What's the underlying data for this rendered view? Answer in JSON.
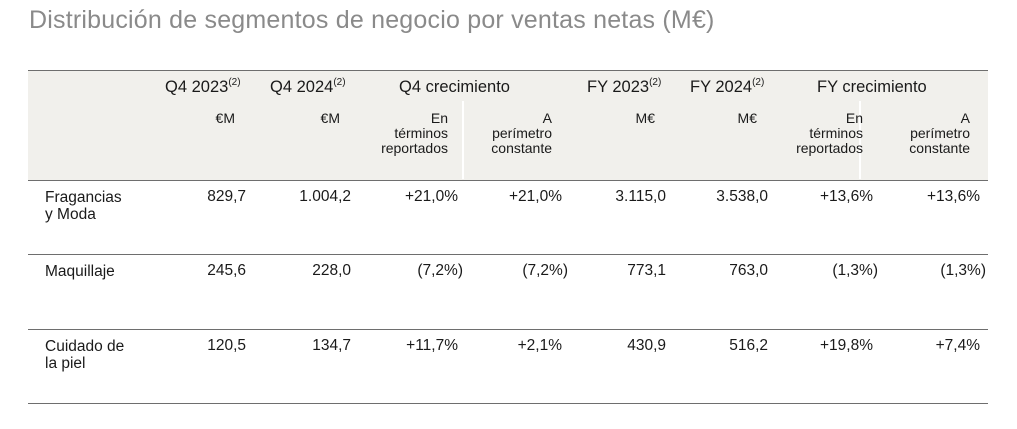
{
  "title": "Distribución de segmentos de negocio por ventas netas (M€)",
  "header": {
    "q4_2023": {
      "label": "Q4 2023",
      "sup": "(2)"
    },
    "q4_2024": {
      "label": "Q4 2024",
      "sup": "(2)"
    },
    "q4_growth": "Q4 crecimiento",
    "fy_2023": {
      "label": "FY 2023",
      "sup": "(2)"
    },
    "fy_2024": {
      "label": "FY 2024",
      "sup": "(2)"
    },
    "fy_growth": "FY crecimiento"
  },
  "units": {
    "q4_2023": "€M",
    "q4_2024": "€M",
    "fy_2023": "M€",
    "fy_2024": "M€"
  },
  "subheaders": {
    "reported": [
      "En",
      "términos",
      "reportados"
    ],
    "constant": [
      "A",
      "perímetro",
      "constante"
    ]
  },
  "rows": [
    {
      "label": [
        "Fragancias",
        "y Moda"
      ],
      "q4_2023": "829,7",
      "q4_2024": "1.004,2",
      "q4_rep": "+21,0%",
      "q4_const": "+21,0%",
      "fy_2023": "3.115,0",
      "fy_2024": "3.538,0",
      "fy_rep": "+13,6%",
      "fy_const": "+13,6%"
    },
    {
      "label": [
        "Maquillaje"
      ],
      "q4_2023": "245,6",
      "q4_2024": "228,0",
      "q4_rep": "(7,2%)",
      "q4_const": "(7,2%)",
      "fy_2023": "773,1",
      "fy_2024": "763,0",
      "fy_rep": "(1,3%)",
      "fy_const": "(1,3%)"
    },
    {
      "label": [
        "Cuidado de",
        "la piel"
      ],
      "q4_2023": "120,5",
      "q4_2024": "134,7",
      "q4_rep": "+11,7%",
      "q4_const": "+2,1%",
      "fy_2023": "430,9",
      "fy_2024": "516,2",
      "fy_rep": "+19,8%",
      "fy_const": "+7,4%"
    }
  ]
}
